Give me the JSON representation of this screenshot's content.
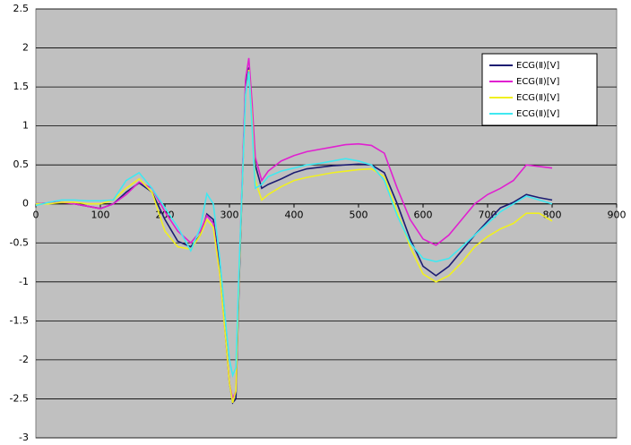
{
  "chart_data": {
    "type": "line",
    "x": [
      0,
      20,
      40,
      60,
      80,
      100,
      120,
      140,
      160,
      180,
      200,
      220,
      240,
      255,
      265,
      275,
      285,
      295,
      300,
      305,
      310,
      315,
      320,
      325,
      330,
      335,
      340,
      350,
      360,
      380,
      400,
      420,
      440,
      460,
      480,
      500,
      520,
      540,
      560,
      580,
      600,
      620,
      640,
      660,
      680,
      700,
      720,
      740,
      760,
      780,
      800
    ],
    "series": [
      {
        "name": "ECG(Ⅱ)[V]",
        "color": "#1c1c72",
        "values": [
          0,
          0.01,
          0.02,
          0,
          -0.03,
          -0.06,
          0,
          0.15,
          0.27,
          0.15,
          -0.2,
          -0.48,
          -0.55,
          -0.4,
          -0.13,
          -0.2,
          -0.8,
          -1.8,
          -2.3,
          -2.55,
          -2.5,
          -1,
          0.3,
          1.5,
          1.75,
          1.2,
          0.5,
          0.2,
          0.25,
          0.32,
          0.4,
          0.45,
          0.47,
          0.49,
          0.5,
          0.51,
          0.5,
          0.4,
          0,
          -0.45,
          -0.8,
          -0.92,
          -0.8,
          -0.6,
          -0.4,
          -0.22,
          -0.05,
          0.02,
          0.12,
          0.08,
          0.05
        ]
      },
      {
        "name": "ECG(Ⅱ)[V]",
        "color": "#e020d0",
        "values": [
          0,
          0.01,
          0.02,
          0,
          -0.03,
          -0.06,
          0,
          0.12,
          0.28,
          0.2,
          -0.1,
          -0.35,
          -0.5,
          -0.35,
          -0.15,
          -0.25,
          -0.9,
          -1.8,
          -2.3,
          -2.5,
          -2.4,
          -0.9,
          0.4,
          1.6,
          1.87,
          1.3,
          0.6,
          0.3,
          0.42,
          0.55,
          0.62,
          0.67,
          0.7,
          0.73,
          0.76,
          0.77,
          0.75,
          0.65,
          0.2,
          -0.2,
          -0.45,
          -0.53,
          -0.4,
          -0.2,
          0,
          0.12,
          0.2,
          0.3,
          0.5,
          0.48,
          0.46
        ]
      },
      {
        "name": "ECG(Ⅱ)[V]",
        "color": "#f0f020",
        "values": [
          0,
          0,
          0.02,
          0.02,
          0,
          0,
          0.05,
          0.2,
          0.32,
          0.15,
          -0.35,
          -0.55,
          -0.58,
          -0.4,
          -0.2,
          -0.3,
          -0.9,
          -1.8,
          -2.3,
          -2.55,
          -2.4,
          -0.9,
          0.3,
          1.4,
          1.72,
          1.1,
          0.3,
          0.05,
          0.12,
          0.22,
          0.3,
          0.34,
          0.37,
          0.4,
          0.42,
          0.44,
          0.45,
          0.35,
          -0.1,
          -0.55,
          -0.9,
          -1,
          -0.92,
          -0.75,
          -0.55,
          -0.42,
          -0.32,
          -0.25,
          -0.12,
          -0.12,
          -0.22
        ]
      },
      {
        "name": "ECG(Ⅱ)[V]",
        "color": "#40e8f0",
        "values": [
          -0.02,
          0.02,
          0.05,
          0.05,
          0.04,
          0.04,
          0.05,
          0.3,
          0.4,
          0.2,
          -0.05,
          -0.3,
          -0.6,
          -0.3,
          0.13,
          0,
          -0.7,
          -1.6,
          -2,
          -2.2,
          -2.1,
          -0.8,
          0.3,
          1.4,
          1.7,
          1,
          0.2,
          0.25,
          0.35,
          0.42,
          0.46,
          0.5,
          0.52,
          0.55,
          0.58,
          0.55,
          0.5,
          0.3,
          -0.15,
          -0.5,
          -0.7,
          -0.74,
          -0.7,
          -0.55,
          -0.4,
          -0.25,
          -0.1,
          0,
          0.1,
          0.05,
          0
        ]
      }
    ],
    "xlim": [
      0,
      900
    ],
    "xticks": [
      0,
      100,
      200,
      300,
      400,
      500,
      600,
      700,
      800,
      900
    ],
    "ylim": [
      -3,
      2.5
    ],
    "yticks": [
      -3,
      -2.5,
      -2,
      -1.5,
      -1,
      -0.5,
      0,
      0.5,
      1,
      1.5,
      2,
      2.5
    ],
    "grid": true,
    "legend": "upper right"
  }
}
